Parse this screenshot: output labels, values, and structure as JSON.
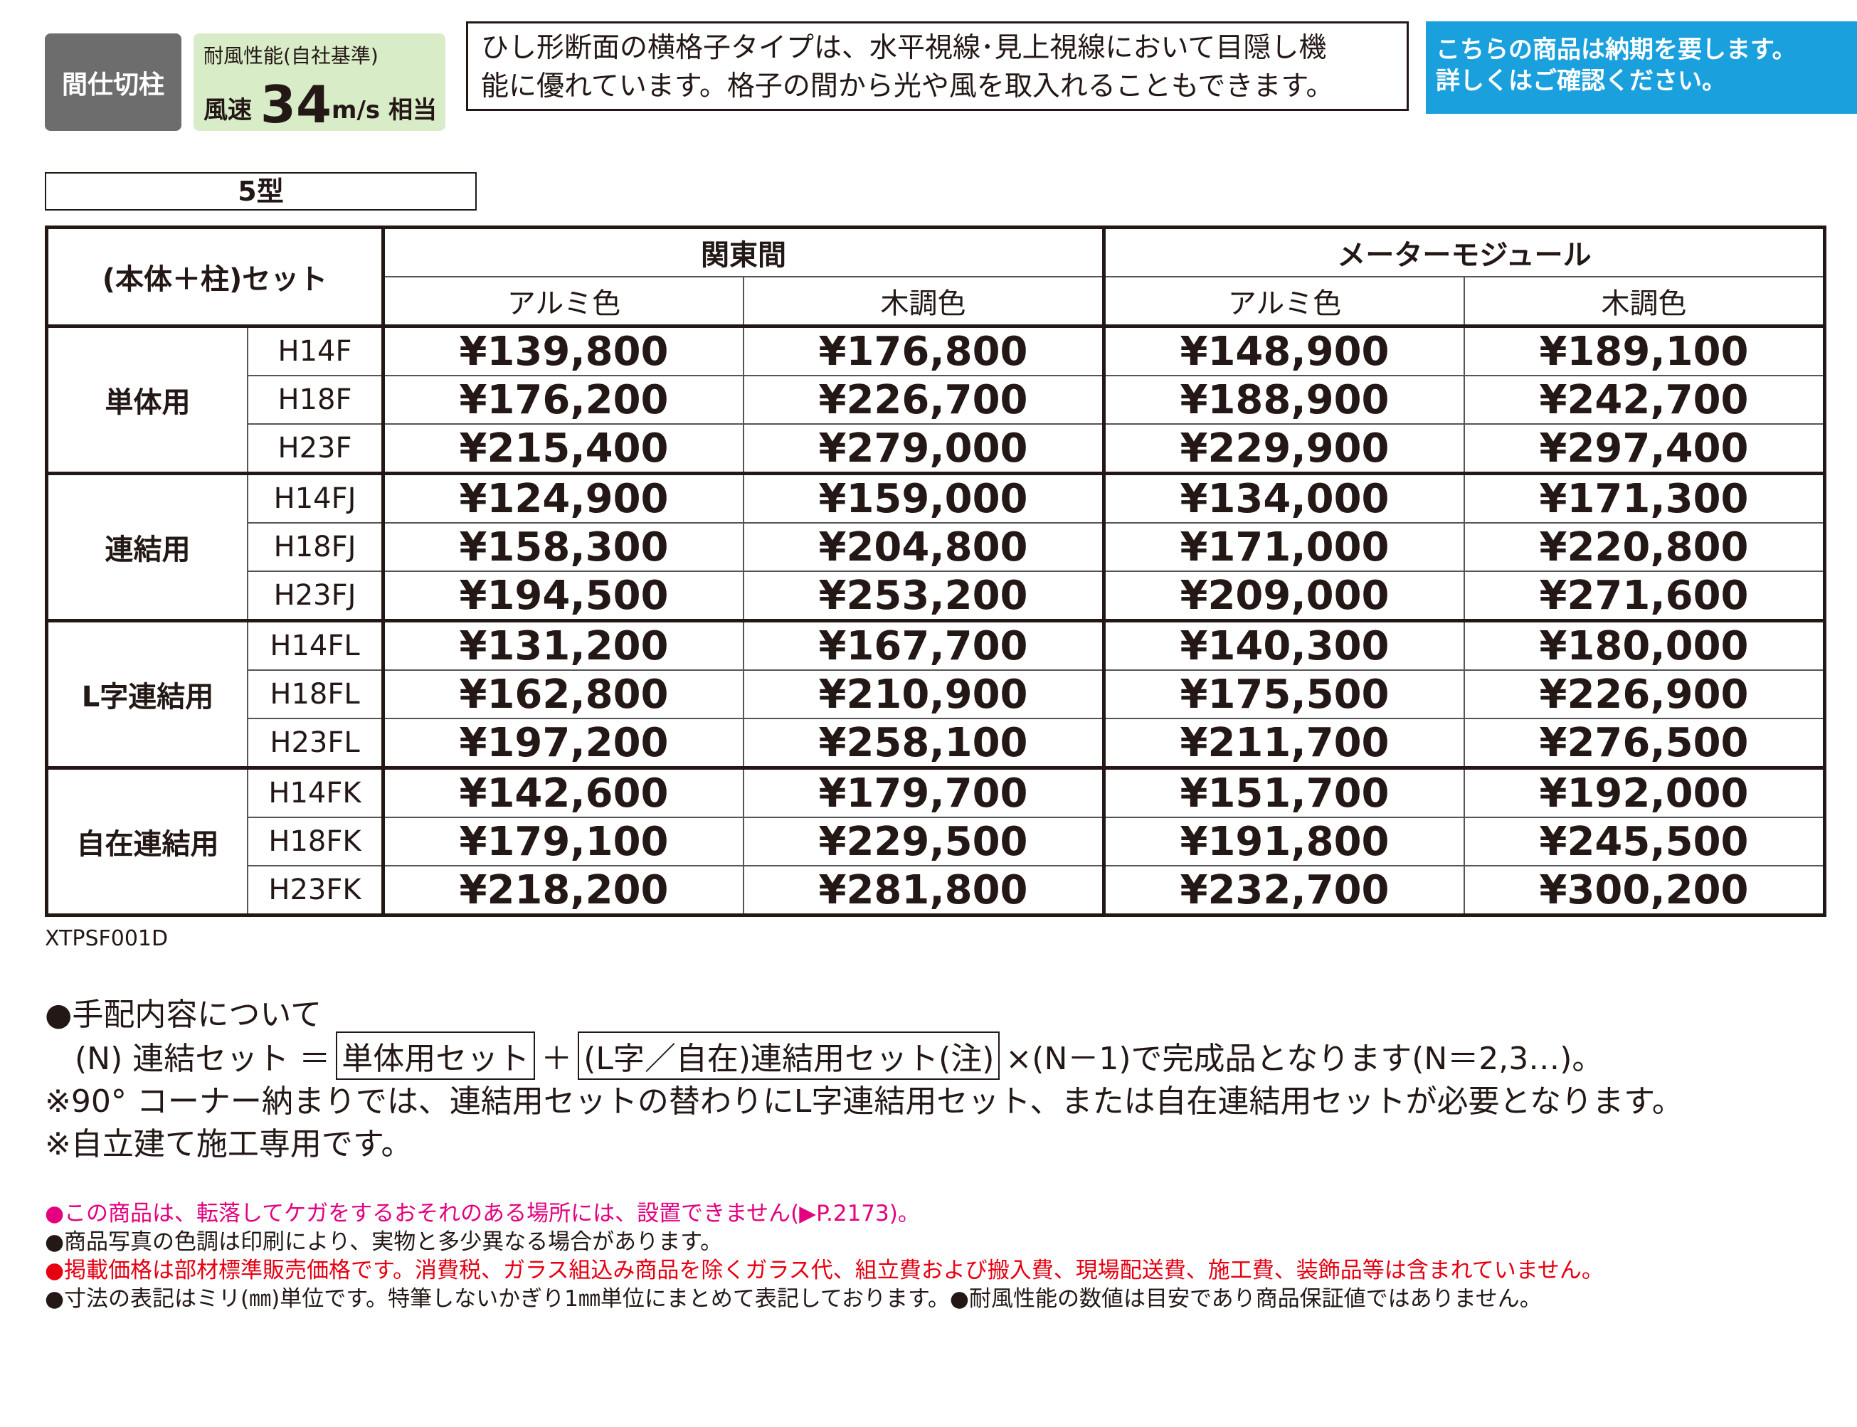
{
  "badges": {
    "category": "間仕切柱",
    "wind": {
      "label": "耐風性能(自社基準)",
      "prefix": "風速",
      "value": "34",
      "unit": "m/s",
      "suffix": "相当"
    }
  },
  "description": [
    "ひし形断面の横格子タイプは、水平視線･見上視線において目隠し機",
    "能に優れています。格子の間から光や風を取入れることもできます。"
  ],
  "notice": [
    "こちらの商品は納期を要します。",
    "詳しくはご確認ください。"
  ],
  "table": {
    "title": "5型",
    "corner": "(本体＋柱)セット",
    "groups": [
      "関東間",
      "メーターモジュール"
    ],
    "subheaders": [
      "アルミ色",
      "木調色",
      "アルミ色",
      "木調色"
    ],
    "sections": [
      {
        "name": "単体用",
        "rows": [
          {
            "code": "H14F",
            "prices": [
              "¥139,800",
              "¥176,800",
              "¥148,900",
              "¥189,100"
            ]
          },
          {
            "code": "H18F",
            "prices": [
              "¥176,200",
              "¥226,700",
              "¥188,900",
              "¥242,700"
            ]
          },
          {
            "code": "H23F",
            "prices": [
              "¥215,400",
              "¥279,000",
              "¥229,900",
              "¥297,400"
            ]
          }
        ]
      },
      {
        "name": "連結用",
        "rows": [
          {
            "code": "H14FJ",
            "prices": [
              "¥124,900",
              "¥159,000",
              "¥134,000",
              "¥171,300"
            ]
          },
          {
            "code": "H18FJ",
            "prices": [
              "¥158,300",
              "¥204,800",
              "¥171,000",
              "¥220,800"
            ]
          },
          {
            "code": "H23FJ",
            "prices": [
              "¥194,500",
              "¥253,200",
              "¥209,000",
              "¥271,600"
            ]
          }
        ]
      },
      {
        "name": "L字連結用",
        "rows": [
          {
            "code": "H14FL",
            "prices": [
              "¥131,200",
              "¥167,700",
              "¥140,300",
              "¥180,000"
            ]
          },
          {
            "code": "H18FL",
            "prices": [
              "¥162,800",
              "¥210,900",
              "¥175,500",
              "¥226,900"
            ]
          },
          {
            "code": "H23FL",
            "prices": [
              "¥197,200",
              "¥258,100",
              "¥211,700",
              "¥276,500"
            ]
          }
        ]
      },
      {
        "name": "自在連結用",
        "rows": [
          {
            "code": "H14FK",
            "prices": [
              "¥142,600",
              "¥179,700",
              "¥151,700",
              "¥192,000"
            ]
          },
          {
            "code": "H18FK",
            "prices": [
              "¥179,100",
              "¥229,500",
              "¥191,800",
              "¥245,500"
            ]
          },
          {
            "code": "H23FK",
            "prices": [
              "¥218,200",
              "¥281,800",
              "¥232,700",
              "¥300,200"
            ]
          }
        ]
      }
    ],
    "code": "XTPSF001D"
  },
  "notes": {
    "heading": "●手配内容について",
    "formula": [
      "(N) 連結セット ＝",
      "単体用セット",
      "＋",
      "(L字／自在)連結用セット(注)",
      "×(N－1)で完成品となります(N＝2,3…)。"
    ],
    "lines": [
      "※90° コーナー納まりでは、連結用セットの替わりにL字連結用セット、または自在連結用セットが必要となります。",
      "※自立建て施工専用です。"
    ]
  },
  "footnotes": [
    "●この商品は、転落してケガをするおそれのある場所には、設置できません(▶P.2173)。",
    "●商品写真の色調は印刷により、実物と多少異なる場合があります。",
    "●掲載価格は部材標準販売価格です。消費税、ガラス組込み商品を除くガラス代、組立費および搬入費、現場配送費、施工費、装飾品等は含まれていません。",
    "●寸法の表記はミリ(㎜)単位です。特筆しないかぎり1㎜単位にまとめて表記しております。●耐風性能の数値は目安であり商品保証値ではありません。"
  ]
}
